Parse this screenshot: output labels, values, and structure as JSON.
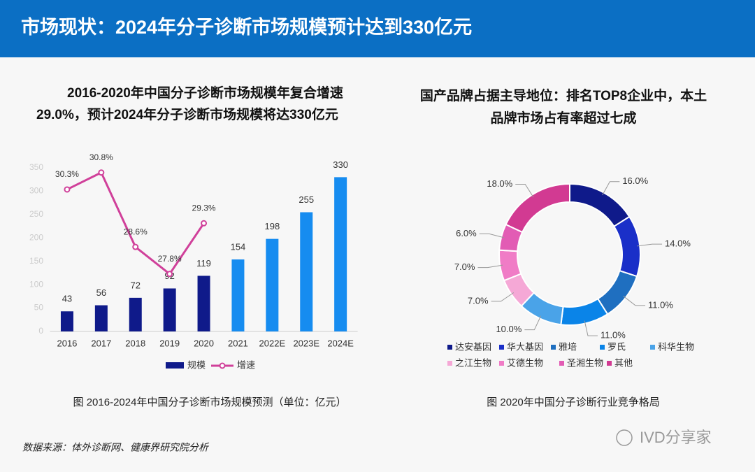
{
  "header": {
    "title": "市场现状：2024年分子诊断市场规模预计达到330亿元"
  },
  "chart_data": [
    {
      "type": "bar_line",
      "title": [
        "2016-2020年中国分子诊断市场规模年复合增速",
        "29.0%，预计2024年分子诊断市场规模将达330亿元"
      ],
      "categories": [
        "2016",
        "2017",
        "2018",
        "2019",
        "2020",
        "2021",
        "2022E",
        "2023E",
        "2024E"
      ],
      "series": [
        {
          "name": "规模",
          "color": "#0f1a8a",
          "colors": [
            "#0f1a8a",
            "#0f1a8a",
            "#0f1a8a",
            "#0f1a8a",
            "#0f1a8a",
            "#168cf0",
            "#168cf0",
            "#168cf0",
            "#168cf0"
          ],
          "values": [
            43,
            56,
            72,
            92,
            119,
            154,
            198,
            255,
            330
          ]
        },
        {
          "name": "增速",
          "color": "#d0409a",
          "axis": "y2",
          "values": [
            30.3,
            30.8,
            28.6,
            27.8,
            29.3,
            null,
            null,
            null,
            null
          ],
          "value_labels": [
            "30.3%",
            "30.8%",
            "28.6%",
            "27.8%",
            "29.3%",
            null,
            null,
            null,
            null
          ]
        }
      ],
      "ylim": [
        0,
        350
      ],
      "yticks": [
        0,
        50,
        100,
        150,
        200,
        250,
        300,
        350
      ],
      "y2lim": [
        26.1,
        30.94
      ],
      "caption": "图 2016-2024年中国分子诊断市场规模预测（单位：亿元）"
    },
    {
      "type": "donut",
      "title": [
        "国产品牌占据主导地位：排名TOP8企业中，本土",
        "品牌市场占有率超过七成"
      ],
      "categories": [
        "达安基因",
        "华大基因",
        "雅培",
        "罗氏",
        "科华生物",
        "之江生物",
        "艾德生物",
        "圣湘生物",
        "其他"
      ],
      "values": [
        16,
        14,
        11,
        11,
        10,
        7,
        7,
        6,
        18
      ],
      "value_labels": [
        "16.0%",
        "14.0%",
        "11.0%",
        "11.0%",
        "10.0%",
        "7.0%",
        "7.0%",
        "6.0%",
        "18.0%"
      ],
      "colors": [
        "#0f1a8a",
        "#1a2fc8",
        "#1f6fc0",
        "#0a84e8",
        "#4aa3e8",
        "#f5a8d6",
        "#f07cc6",
        "#e25cb4",
        "#d23a92"
      ],
      "caption": "图 2020年中国分子诊断行业竞争格局"
    }
  ],
  "source": "数据来源：体外诊断网、健康界研究院分析",
  "watermark": "IVD分享家"
}
